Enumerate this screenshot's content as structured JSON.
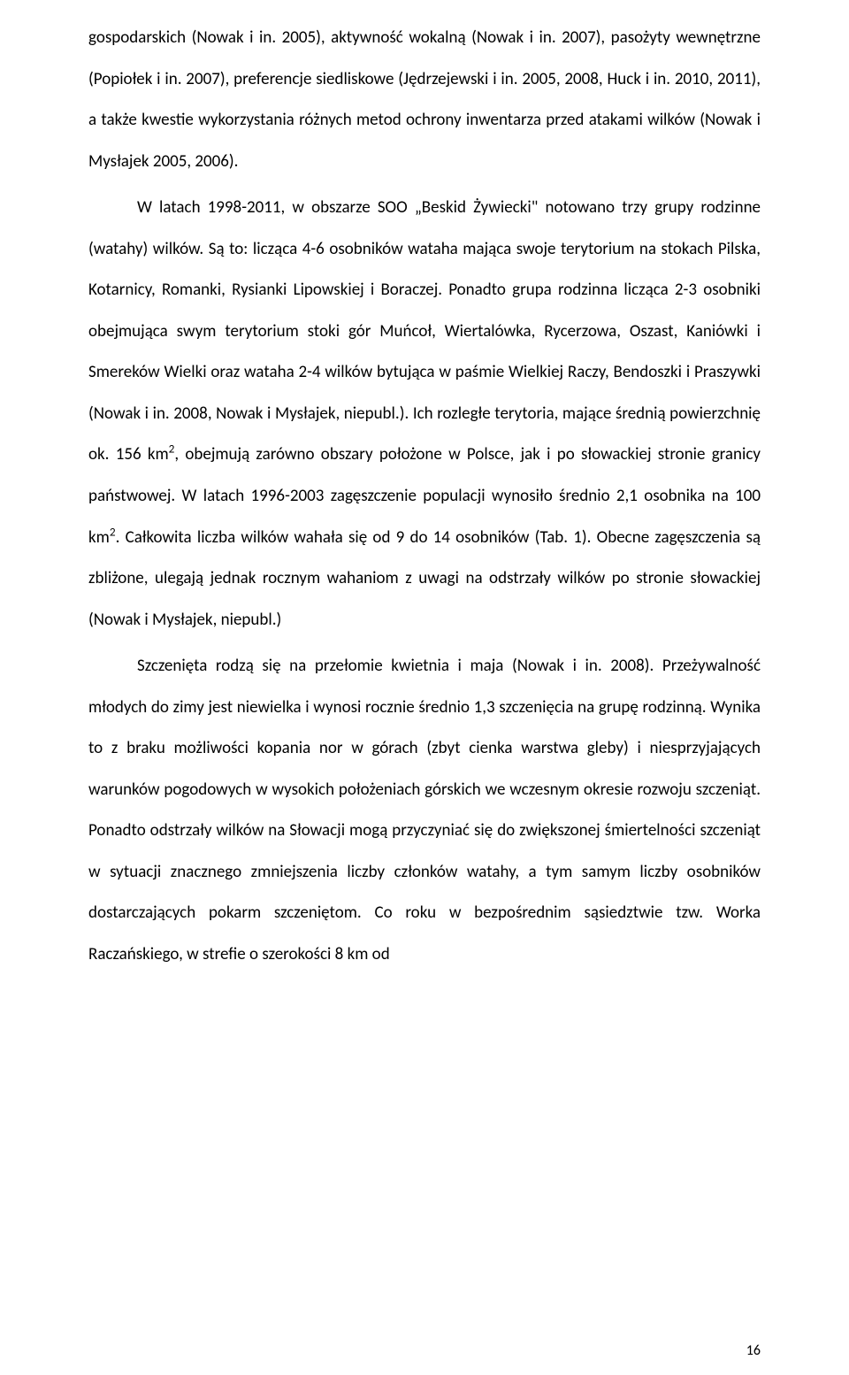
{
  "paragraphs": {
    "p1": "gospodarskich (Nowak i in. 2005), aktywność wokalną (Nowak i in. 2007), pasożyty wewnętrzne (Popiołek i in. 2007), preferencje siedliskowe (Jędrzejewski i in. 2005, 2008, Huck i in. 2010, 2011), a także kwestie wykorzystania różnych metod ochrony inwentarza przed atakami wilków (Nowak i Mysłajek 2005, 2006).",
    "p2a": "W latach 1998-2011, w obszarze SOO „Beskid Żywiecki\" notowano trzy grupy rodzinne (watahy) wilków. Są to: licząca 4-6 osobników wataha mająca swoje terytorium na stokach Pilska, Kotarnicy, Romanki, Rysianki Lipowskiej i Boraczej. Ponadto grupa rodzinna licząca 2-3 osobniki obejmująca swym terytorium stoki gór Muńcoł, Wiertalówka, Rycerzowa, Oszast, Kaniówki i Smereków Wielki oraz wataha 2-4 wilków bytująca w paśmie Wielkiej Raczy, Bendoszki i Praszywki (Nowak i in. 2008, Nowak i Mysłajek, niepubl.). Ich rozległe terytoria, mające średnią powierzchnię ok. 156 km",
    "p2b": ", obejmują zarówno obszary położone w Polsce, jak i po słowackiej stronie granicy państwowej. W latach 1996-2003 zagęszczenie populacji wynosiło średnio 2,1 osobnika na 100 km",
    "p2c": ". Całkowita liczba wilków wahała się od 9 do 14 osobników (Tab. 1). Obecne zagęszczenia są zbliżone, ulegają jednak rocznym wahaniom z uwagi na odstrzały wilków po stronie słowackiej (Nowak i Mysłajek, niepubl.)",
    "p3": "Szczenięta rodzą się na przełomie kwietnia i maja (Nowak i in. 2008). Przeżywalność młodych do zimy jest niewielka i wynosi rocznie średnio 1,3 szczenięcia na grupę rodzinną. Wynika to z braku możliwości kopania nor w górach (zbyt cienka warstwa gleby) i niesprzyjających warunków pogodowych w wysokich położeniach górskich we wczesnym okresie rozwoju szczeniąt. Ponadto odstrzały wilków na Słowacji mogą przyczyniać się do zwiększonej śmiertelności szczeniąt w sytuacji znacznego zmniejszenia liczby członków watahy, a tym samym liczby osobników dostarczających pokarm szczeniętom.  Co roku w bezpośrednim sąsiedztwie tzw. Worka Raczańskiego, w strefie o szerokości 8 km od",
    "sup": "2"
  },
  "pageNumber": "16",
  "colors": {
    "background": "#ffffff",
    "text": "#000000"
  },
  "typography": {
    "bodyFontSize": 19,
    "lineHeight": 2.45,
    "fontFamily": "Calibri, Arial, sans-serif"
  }
}
